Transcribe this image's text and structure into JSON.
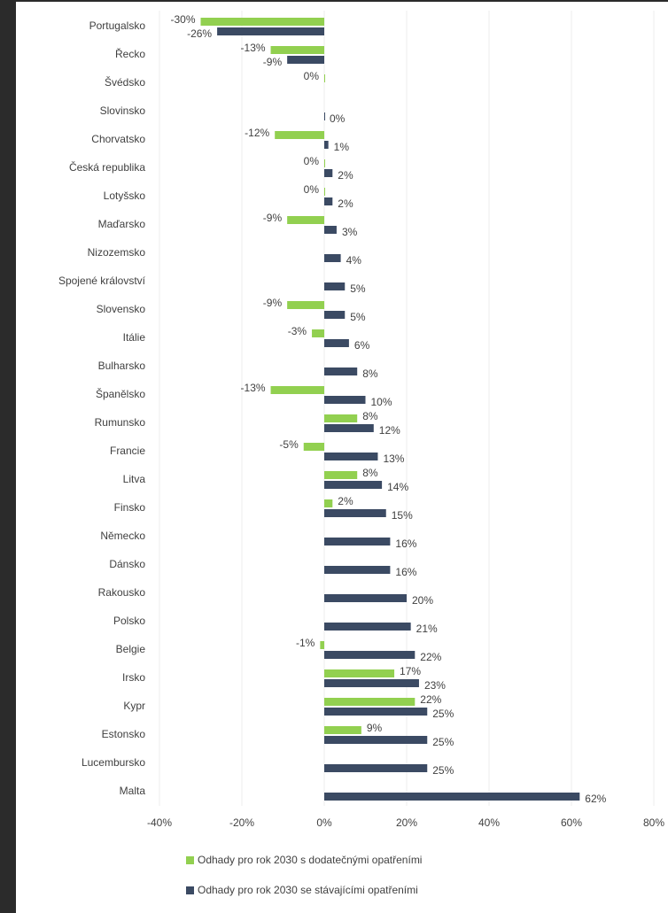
{
  "chart_data": {
    "type": "barh",
    "categories": [
      "Portugalsko",
      "Řecko",
      "Švédsko",
      "Slovinsko",
      "Chorvatsko",
      "Česká republika",
      "Lotyšsko",
      "Maďarsko",
      "Nizozemsko",
      "Spojené království",
      "Slovensko",
      "Itálie",
      "Bulharsko",
      "Španělsko",
      "Rumunsko",
      "Francie",
      "Litva",
      "Finsko",
      "Německo",
      "Dánsko",
      "Rakousko",
      "Polsko",
      "Belgie",
      "Irsko",
      "Kypr",
      "Estonsko",
      "Lucembursko",
      "Malta"
    ],
    "series": [
      {
        "name": "Odhady pro rok 2030 s dodatečnými opatřeními",
        "color": "#92d050",
        "values": [
          -30,
          -13,
          0,
          null,
          -12,
          0,
          0,
          -9,
          null,
          null,
          -9,
          -3,
          null,
          -13,
          8,
          -5,
          8,
          2,
          null,
          null,
          null,
          null,
          -1,
          17,
          22,
          9,
          null,
          null
        ],
        "value_labels": [
          "-30%",
          "-13%",
          "0%",
          null,
          "-12%",
          "0%",
          "0%",
          "-9%",
          null,
          null,
          "-9%",
          "-3%",
          null,
          "-13%",
          "8%",
          "-5%",
          "8%",
          "2%",
          null,
          null,
          null,
          null,
          "-1%",
          "17%",
          "22%",
          "9%",
          null,
          null
        ]
      },
      {
        "name": "Odhady pro rok 2030 se stávajícími opatřeními",
        "color": "#3b4a63",
        "values": [
          -26,
          -9,
          null,
          0,
          1,
          2,
          2,
          3,
          4,
          5,
          5,
          6,
          8,
          10,
          12,
          13,
          14,
          15,
          16,
          16,
          20,
          21,
          22,
          23,
          25,
          25,
          25,
          62
        ],
        "value_labels": [
          "-26%",
          "-9%",
          null,
          "0%",
          "1%",
          "2%",
          "2%",
          "3%",
          "4%",
          "5%",
          "5%",
          "6%",
          "8%",
          "10%",
          "12%",
          "13%",
          "14%",
          "15%",
          "16%",
          "16%",
          "20%",
          "21%",
          "22%",
          "23%",
          "25%",
          "25%",
          "25%",
          "62%"
        ]
      }
    ],
    "xlim": [
      -40,
      80
    ],
    "xticks": [
      {
        "value": -40,
        "label": "-40%"
      },
      {
        "value": -20,
        "label": "-20%"
      },
      {
        "value": 0,
        "label": "0%"
      },
      {
        "value": 20,
        "label": "20%"
      },
      {
        "value": 40,
        "label": "40%"
      },
      {
        "value": 60,
        "label": "60%"
      },
      {
        "value": 80,
        "label": "80%"
      }
    ],
    "grid": true
  }
}
